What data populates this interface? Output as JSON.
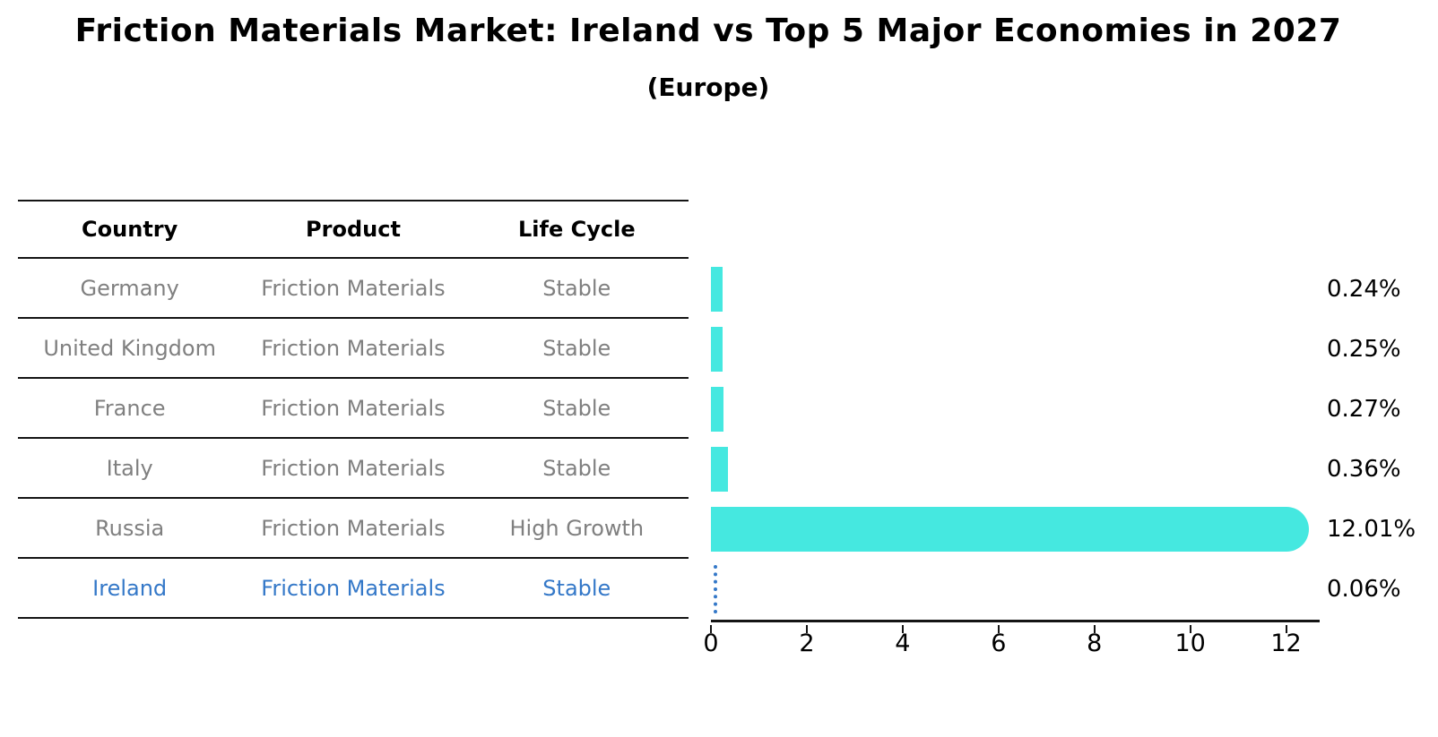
{
  "title": "Friction Materials Market: Ireland vs Top 5 Major Economies in 2027",
  "subtitle": "(Europe)",
  "table": {
    "headers": [
      "Country",
      "Product",
      "Life Cycle"
    ],
    "rows": [
      {
        "country": "Germany",
        "product": "Friction Materials",
        "life_cycle": "Stable",
        "highlighted": false
      },
      {
        "country": "United Kingdom",
        "product": "Friction Materials",
        "life_cycle": "Stable",
        "highlighted": false
      },
      {
        "country": "France",
        "product": "Friction Materials",
        "life_cycle": "Stable",
        "highlighted": false
      },
      {
        "country": "Italy",
        "product": "Friction Materials",
        "life_cycle": "Stable",
        "highlighted": false
      },
      {
        "country": "Russia",
        "product": "Friction Materials",
        "life_cycle": "High Growth",
        "highlighted": false
      },
      {
        "country": "Ireland",
        "product": "Friction Materials",
        "life_cycle": "Stable",
        "highlighted": true
      }
    ]
  },
  "chart_data": {
    "type": "bar",
    "orientation": "horizontal",
    "title": "Friction Materials Market: Ireland vs Top 5 Major Economies in 2027",
    "subtitle": "(Europe)",
    "categories": [
      "Germany",
      "United Kingdom",
      "France",
      "Italy",
      "Russia",
      "Ireland"
    ],
    "values": [
      0.24,
      0.25,
      0.27,
      0.36,
      12.01,
      0.06
    ],
    "value_labels": [
      "0.24%",
      "0.25%",
      "0.27%",
      "0.36%",
      "12.01%",
      "0.06%"
    ],
    "highlight_index": 5,
    "x_ticks": [
      0,
      2,
      4,
      6,
      8,
      10,
      12
    ],
    "xlim": [
      0,
      12.7
    ],
    "grid": false,
    "legend": false
  },
  "colors": {
    "bar": "#45E8E0",
    "highlight": "#3478C8",
    "row_text": "#808080",
    "header_text": "#000000",
    "line": "#141414"
  }
}
